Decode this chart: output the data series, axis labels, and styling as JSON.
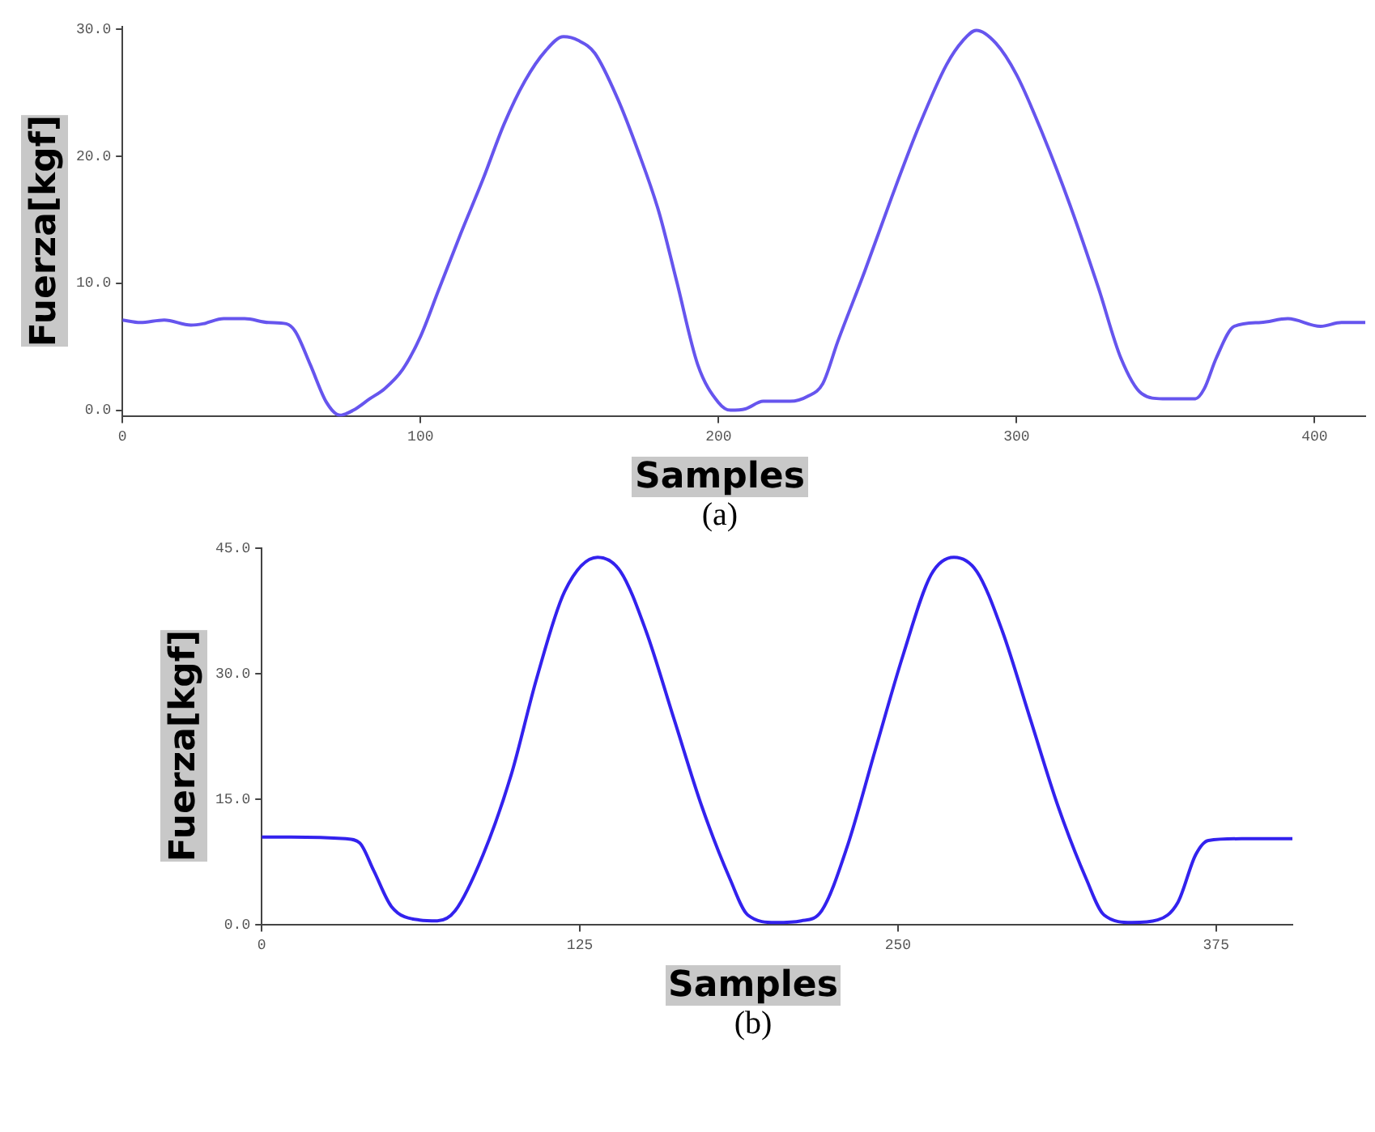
{
  "chart_data": [
    {
      "type": "line",
      "xlabel": "Samples",
      "ylabel": "Fuerza[kgf]",
      "annotations": [
        "(a)"
      ],
      "x": [
        0,
        6,
        14,
        23,
        27,
        34,
        41,
        49,
        55,
        58,
        63,
        68.5,
        73,
        77.5,
        83,
        88,
        94,
        100,
        106,
        113.5,
        121,
        128,
        135,
        142,
        148,
        153,
        158.5,
        166,
        173,
        180,
        186,
        193,
        200,
        204,
        209,
        215,
        224,
        230,
        235,
        240,
        249,
        258,
        267.5,
        276.5,
        282,
        286.5,
        293,
        300,
        309,
        318,
        327.5,
        335,
        342,
        349,
        360,
        363,
        367,
        373,
        382,
        391,
        402,
        409,
        417
      ],
      "series": [
        {
          "color": "#6655ee",
          "values": [
            7.1,
            6.9,
            7.1,
            6.7,
            6.8,
            7.2,
            7.2,
            6.9,
            6.8,
            6.2,
            3.6,
            0.6,
            -0.4,
            0,
            0.9,
            1.7,
            3.2,
            5.8,
            9.4,
            13.9,
            18.2,
            22.5,
            25.9,
            28.3,
            29.4,
            29.1,
            28.1,
            24.6,
            20.4,
            15.6,
            10.1,
            3.6,
            0.6,
            0,
            0.1,
            0.7,
            0.7,
            1.1,
            2.1,
            5.4,
            10.9,
            16.7,
            22.5,
            27.2,
            29.1,
            29.9,
            28.9,
            26.4,
            21.6,
            16.1,
            9.6,
            4.1,
            1.3,
            0.9,
            0.9,
            1.7,
            4.1,
            6.6,
            6.9,
            7.2,
            6.6,
            6.9,
            6.9
          ]
        }
      ],
      "xlim": [
        0,
        417
      ],
      "ylim": [
        -0.5,
        30.2
      ],
      "xticks": [
        0,
        100,
        200,
        300,
        400
      ],
      "yticks": [
        {
          "value": 0,
          "label": "0.0"
        },
        {
          "value": 10,
          "label": "10.0"
        },
        {
          "value": 20,
          "label": "20.0"
        },
        {
          "value": 30,
          "label": "30.0"
        }
      ]
    },
    {
      "type": "line",
      "xlabel": "Samples",
      "ylabel": "Fuerza[kgf]",
      "annotations": [
        "(b)"
      ],
      "x": [
        0,
        11.5,
        33,
        38.5,
        44,
        51,
        62,
        69,
        76,
        87,
        98,
        108,
        119,
        132,
        141,
        151,
        162,
        173,
        184,
        191,
        202,
        212,
        220,
        230,
        241,
        252,
        263,
        272,
        281,
        291,
        302,
        313,
        324,
        331,
        342,
        352,
        360,
        367,
        372,
        385,
        405
      ],
      "series": [
        {
          "color": "#3322ee",
          "values": [
            10.5,
            10.5,
            10.3,
            9.8,
            6.5,
            2.2,
            0.6,
            0.5,
            1.7,
            8.4,
            17.9,
            29.4,
            39.8,
            43.9,
            42.2,
            35.1,
            24.6,
            14.1,
            5.5,
            1.2,
            0.3,
            0.5,
            1.7,
            9.3,
            20.8,
            32.2,
            41.8,
            43.9,
            42.2,
            35.1,
            24.6,
            14.1,
            5.5,
            1.2,
            0.3,
            0.6,
            2.7,
            8.4,
            10.1,
            10.3,
            10.3
          ]
        }
      ],
      "xlim": [
        0,
        405
      ],
      "ylim": [
        0,
        45
      ],
      "xticks": [
        0,
        125,
        250,
        375
      ],
      "yticks": [
        {
          "value": 0,
          "label": "0.0"
        },
        {
          "value": 15,
          "label": "15.0"
        },
        {
          "value": 30,
          "label": "30.0"
        },
        {
          "value": 45,
          "label": "45.0"
        }
      ]
    }
  ]
}
